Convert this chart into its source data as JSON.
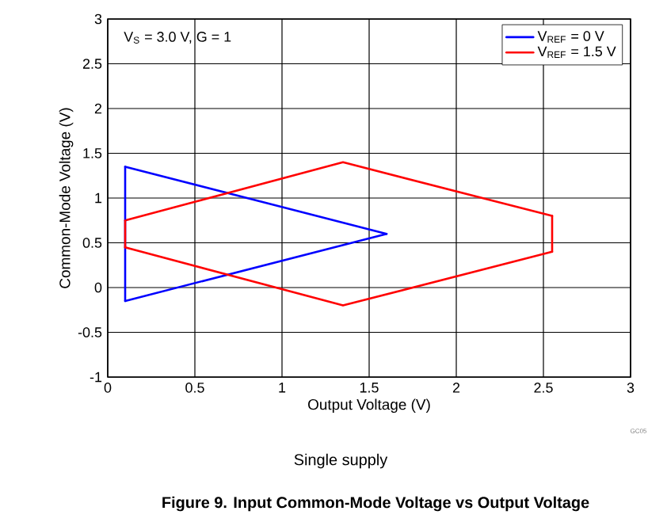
{
  "chart_data": {
    "type": "line",
    "title": "Figure 9. Input Common-Mode Voltage vs Output Voltage",
    "xlabel": "Output Voltage (V)",
    "ylabel": "Common-Mode Voltage (V)",
    "annotations": [
      "V$_{S}$ = 3.0 V, G = 1",
      "GC05",
      "Single supply"
    ],
    "series": [
      {
        "name": "V$_{REF}$ = 0 V",
        "color": "#0000ff",
        "x": [
          0.1,
          1.6
        ],
        "values": [
          1.35,
          0.6
        ]
      },
      {
        "name": "V$_{REF}$ = 1.5 V",
        "color": "#ff0000",
        "x": [
          0.1,
          1.35,
          2.55
        ],
        "values": [
          0.75,
          1.4,
          0.8
        ]
      },
      {
        "color": "#0000ff",
        "x": [
          0.1,
          1.6
        ],
        "values": [
          -0.15,
          0.6
        ]
      },
      {
        "color": "#0000ff",
        "x": [
          0.1,
          0.1
        ],
        "values": [
          -0.15,
          1.35
        ]
      },
      {
        "color": "#ff0000",
        "x": [
          0.1,
          1.35,
          2.55
        ],
        "values": [
          0.45,
          -0.2,
          0.4
        ]
      },
      {
        "color": "#ff0000",
        "x": [
          0.1,
          0.1
        ],
        "values": [
          0.45,
          0.75
        ]
      },
      {
        "color": "#ff0000",
        "x": [
          2.55,
          2.55
        ],
        "values": [
          0.4,
          0.8
        ]
      }
    ],
    "xlim": [
      0,
      3
    ],
    "ylim": [
      -1,
      3
    ],
    "xticks": [
      0,
      0.5,
      1,
      1.5,
      2,
      2.5,
      3
    ],
    "yticks": [
      -1,
      -0.5,
      0,
      0.5,
      1,
      1.5,
      2,
      2.5,
      3
    ],
    "grid": true,
    "legend": "top right",
    "marker": "none",
    "line_style": "solid"
  }
}
